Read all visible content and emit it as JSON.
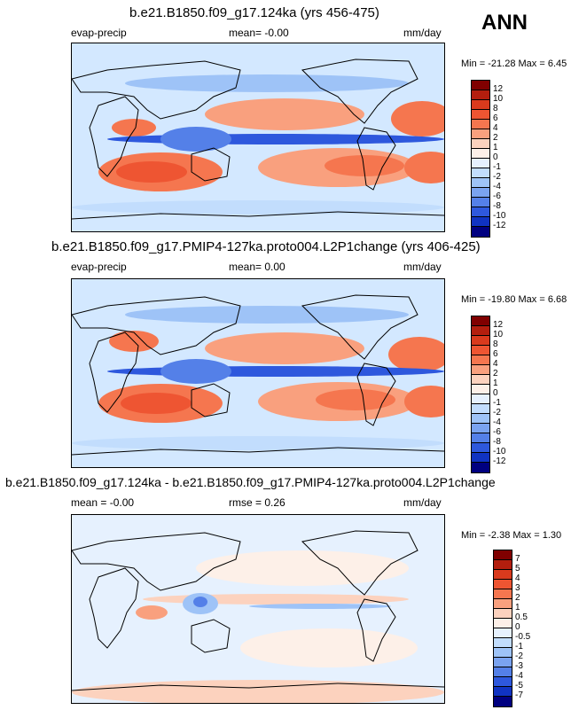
{
  "corner_label": "ANN",
  "chart_data": [
    {
      "type": "heatmap",
      "title": "b.e21.B1850.f09_g17.124ka (yrs 456-475)",
      "left_label": "evap-precip",
      "center_label": "mean=  -0.00",
      "units": "mm/day",
      "minmax": "Min = -21.28 Max =   6.45",
      "colorbar": {
        "levels": [
          "12",
          "10",
          "8",
          "6",
          "4",
          "2",
          "1",
          "0",
          "-1",
          "-2",
          "-4",
          "-6",
          "-8",
          "-10",
          "-12"
        ],
        "colors": [
          "#800000",
          "#b31e0e",
          "#d93a1d",
          "#ee5532",
          "#f5764f",
          "#f9a07e",
          "#fcd2be",
          "#fdf0e8",
          "#e6f1fe",
          "#c2ddfd",
          "#9ec3f7",
          "#7aa3f0",
          "#5480e8",
          "#2e58dd",
          "#1033c2",
          "#000080"
        ]
      }
    },
    {
      "type": "heatmap",
      "title": "b.e21.B1850.f09_g17.PMIP4-127ka.proto004.L2P1change (yrs 406-425)",
      "left_label": "evap-precip",
      "center_label": "mean=   0.00",
      "units": "mm/day",
      "minmax": "Min = -19.80 Max =   6.68",
      "colorbar": {
        "levels": [
          "12",
          "10",
          "8",
          "6",
          "4",
          "2",
          "1",
          "0",
          "-1",
          "-2",
          "-4",
          "-6",
          "-8",
          "-10",
          "-12"
        ],
        "colors": [
          "#800000",
          "#b31e0e",
          "#d93a1d",
          "#ee5532",
          "#f5764f",
          "#f9a07e",
          "#fcd2be",
          "#fdf0e8",
          "#e6f1fe",
          "#c2ddfd",
          "#9ec3f7",
          "#7aa3f0",
          "#5480e8",
          "#2e58dd",
          "#1033c2",
          "#000080"
        ]
      }
    },
    {
      "type": "heatmap",
      "title": "b.e21.B1850.f09_g17.124ka - b.e21.B1850.f09_g17.PMIP4-127ka.proto004.L2P1change",
      "left_label": "mean =  -0.00",
      "center_label": "rmse =   0.26",
      "units": "mm/day",
      "minmax": "Min =  -2.38 Max =   1.30",
      "colorbar": {
        "levels": [
          "7",
          "5",
          "4",
          "3",
          "2",
          "1",
          "0.5",
          "0",
          "-0.5",
          "-1",
          "-2",
          "-3",
          "-4",
          "-5",
          "-7"
        ],
        "colors": [
          "#800000",
          "#b31e0e",
          "#d93a1d",
          "#ee5532",
          "#f5764f",
          "#f9a07e",
          "#fcd2be",
          "#fdf0e8",
          "#e6f1fe",
          "#c2ddfd",
          "#9ec3f7",
          "#7aa3f0",
          "#5480e8",
          "#2e58dd",
          "#1033c2",
          "#000080"
        ]
      }
    }
  ]
}
